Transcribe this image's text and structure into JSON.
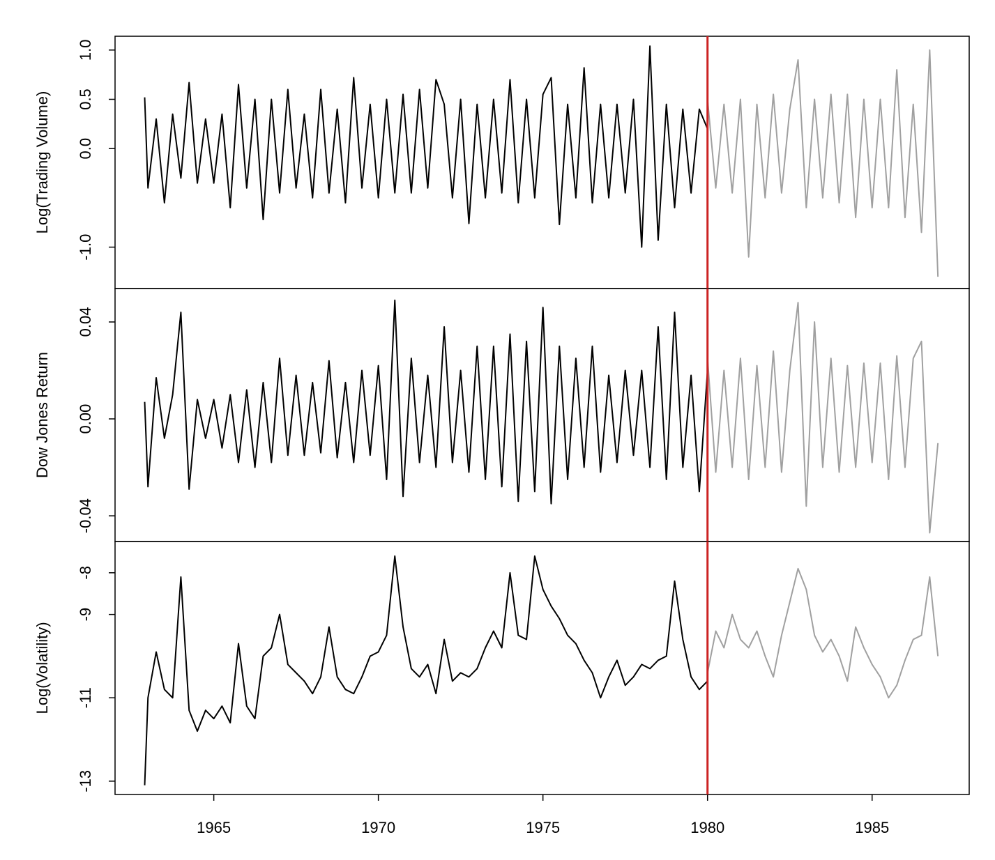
{
  "chart_data": [
    {
      "type": "line",
      "ylabel": "Log(Trading Volume)",
      "xlim": [
        1962,
        1987.95
      ],
      "ylim": [
        -1.42,
        1.14
      ],
      "yticks": [
        {
          "value": -1.0,
          "label": "-1.0"
        },
        {
          "value": 0.0,
          "label": "0.0"
        },
        {
          "value": 0.5,
          "label": "0.5"
        },
        {
          "value": 1.0,
          "label": "1.0"
        }
      ],
      "vline": 1980,
      "vline_color": "#cc2222",
      "series": [
        {
          "color": "#000000",
          "x": [
            1962.9,
            1963,
            1963.25,
            1963.5,
            1963.75,
            1964,
            1964.25,
            1964.5,
            1964.75,
            1965,
            1965.25,
            1965.5,
            1965.75,
            1966,
            1966.25,
            1966.5,
            1966.75,
            1967,
            1967.25,
            1967.5,
            1967.75,
            1968,
            1968.25,
            1968.5,
            1968.75,
            1969,
            1969.25,
            1969.5,
            1969.75,
            1970,
            1970.25,
            1970.5,
            1970.75,
            1971,
            1971.25,
            1971.5,
            1971.75,
            1972,
            1972.25,
            1972.5,
            1972.75,
            1973,
            1973.25,
            1973.5,
            1973.75,
            1974,
            1974.25,
            1974.5,
            1974.75,
            1975,
            1975.25,
            1975.5,
            1975.75,
            1976,
            1976.25,
            1976.5,
            1976.75,
            1977,
            1977.25,
            1977.5,
            1977.75,
            1978,
            1978.25,
            1978.5,
            1978.75,
            1979,
            1979.25,
            1979.5,
            1979.75,
            1980
          ],
          "values": [
            0.52,
            -0.4,
            0.3,
            -0.55,
            0.35,
            -0.3,
            0.67,
            -0.35,
            0.3,
            -0.35,
            0.35,
            -0.6,
            0.65,
            -0.4,
            0.5,
            -0.72,
            0.5,
            -0.45,
            0.6,
            -0.4,
            0.35,
            -0.5,
            0.6,
            -0.45,
            0.4,
            -0.55,
            0.72,
            -0.4,
            0.45,
            -0.5,
            0.5,
            -0.45,
            0.55,
            -0.45,
            0.6,
            -0.4,
            0.7,
            0.45,
            -0.5,
            0.5,
            -0.76,
            0.45,
            -0.5,
            0.5,
            -0.45,
            0.7,
            -0.55,
            0.5,
            -0.5,
            0.55,
            0.72,
            -0.77,
            0.45,
            -0.5,
            0.82,
            -0.55,
            0.45,
            -0.5,
            0.45,
            -0.45,
            0.5,
            -1.0,
            1.04,
            -0.93,
            0.45,
            -0.6,
            0.4,
            -0.45,
            0.4,
            0.2
          ]
        },
        {
          "color": "#a0a0a0",
          "x": [
            1980,
            1980.25,
            1980.5,
            1980.75,
            1981,
            1981.25,
            1981.5,
            1981.75,
            1982,
            1982.25,
            1982.5,
            1982.75,
            1983,
            1983.25,
            1983.5,
            1983.75,
            1984,
            1984.25,
            1984.5,
            1984.75,
            1985,
            1985.25,
            1985.5,
            1985.75,
            1986,
            1986.25,
            1986.5,
            1986.75,
            1987
          ],
          "values": [
            0.5,
            -0.4,
            0.45,
            -0.45,
            0.5,
            -1.1,
            0.45,
            -0.5,
            0.55,
            -0.45,
            0.4,
            0.9,
            -0.6,
            0.5,
            -0.5,
            0.55,
            -0.55,
            0.55,
            -0.7,
            0.5,
            -0.6,
            0.5,
            -0.6,
            0.8,
            -0.7,
            0.45,
            -0.85,
            1.0,
            -1.3
          ]
        }
      ]
    },
    {
      "type": "line",
      "ylabel": "Dow Jones Return",
      "xlim": [
        1962,
        1987.95
      ],
      "ylim": [
        -0.0506,
        0.0538
      ],
      "yticks": [
        {
          "value": -0.04,
          "label": "-0.04"
        },
        {
          "value": 0.0,
          "label": "0.00"
        },
        {
          "value": 0.04,
          "label": "0.04"
        }
      ],
      "vline": 1980,
      "vline_color": "#cc2222",
      "series": [
        {
          "color": "#000000",
          "x": [
            1962.9,
            1963,
            1963.25,
            1963.5,
            1963.75,
            1964,
            1964.25,
            1964.5,
            1964.75,
            1965,
            1965.25,
            1965.5,
            1965.75,
            1966,
            1966.25,
            1966.5,
            1966.75,
            1967,
            1967.25,
            1967.5,
            1967.75,
            1968,
            1968.25,
            1968.5,
            1968.75,
            1969,
            1969.25,
            1969.5,
            1969.75,
            1970,
            1970.25,
            1970.5,
            1970.75,
            1971,
            1971.25,
            1971.5,
            1971.75,
            1972,
            1972.25,
            1972.5,
            1972.75,
            1973,
            1973.25,
            1973.5,
            1973.75,
            1974,
            1974.25,
            1974.5,
            1974.75,
            1975,
            1975.25,
            1975.5,
            1975.75,
            1976,
            1976.25,
            1976.5,
            1976.75,
            1977,
            1977.25,
            1977.5,
            1977.75,
            1978,
            1978.25,
            1978.5,
            1978.75,
            1979,
            1979.25,
            1979.5,
            1979.75,
            1980
          ],
          "values": [
            0.007,
            -0.028,
            0.017,
            -0.008,
            0.01,
            0.044,
            -0.029,
            0.008,
            -0.008,
            0.008,
            -0.012,
            0.01,
            -0.018,
            0.012,
            -0.02,
            0.015,
            -0.018,
            0.025,
            -0.015,
            0.018,
            -0.015,
            0.015,
            -0.014,
            0.024,
            -0.016,
            0.015,
            -0.018,
            0.02,
            -0.015,
            0.022,
            -0.025,
            0.049,
            -0.032,
            0.025,
            -0.018,
            0.018,
            -0.02,
            0.038,
            -0.018,
            0.02,
            -0.022,
            0.03,
            -0.025,
            0.03,
            -0.028,
            0.035,
            -0.034,
            0.032,
            -0.03,
            0.046,
            -0.035,
            0.03,
            -0.025,
            0.025,
            -0.02,
            0.03,
            -0.022,
            0.018,
            -0.018,
            0.02,
            -0.015,
            0.02,
            -0.02,
            0.038,
            -0.025,
            0.044,
            -0.02,
            0.018,
            -0.03,
            0.02
          ]
        },
        {
          "color": "#a0a0a0",
          "x": [
            1980,
            1980.25,
            1980.5,
            1980.75,
            1981,
            1981.25,
            1981.5,
            1981.75,
            1982,
            1982.25,
            1982.5,
            1982.75,
            1983,
            1983.25,
            1983.5,
            1983.75,
            1984,
            1984.25,
            1984.5,
            1984.75,
            1985,
            1985.25,
            1985.5,
            1985.75,
            1986,
            1986.25,
            1986.5,
            1986.75,
            1987
          ],
          "values": [
            0.025,
            -0.022,
            0.02,
            -0.02,
            0.025,
            -0.025,
            0.022,
            -0.02,
            0.028,
            -0.022,
            0.02,
            0.048,
            -0.036,
            0.04,
            -0.02,
            0.025,
            -0.022,
            0.022,
            -0.02,
            0.023,
            -0.018,
            0.023,
            -0.025,
            0.026,
            -0.02,
            0.025,
            0.032,
            -0.047,
            -0.01
          ]
        }
      ]
    },
    {
      "type": "line",
      "ylabel": "Log(Volatility)",
      "xlim": [
        1962,
        1987.95
      ],
      "ylim": [
        -13.32,
        -7.25
      ],
      "yticks": [
        -13,
        -11,
        -9,
        -8
      ],
      "xticks": [
        1965,
        1970,
        1975,
        1980,
        1985
      ],
      "vline": 1980,
      "vline_color": "#cc2222",
      "series": [
        {
          "color": "#000000",
          "x": [
            1962.9,
            1963,
            1963.25,
            1963.5,
            1963.75,
            1964,
            1964.25,
            1964.5,
            1964.75,
            1965,
            1965.25,
            1965.5,
            1965.75,
            1966,
            1966.25,
            1966.5,
            1966.75,
            1967,
            1967.25,
            1967.5,
            1967.75,
            1968,
            1968.25,
            1968.5,
            1968.75,
            1969,
            1969.25,
            1969.5,
            1969.75,
            1970,
            1970.25,
            1970.5,
            1970.75,
            1971,
            1971.25,
            1971.5,
            1971.75,
            1972,
            1972.25,
            1972.5,
            1972.75,
            1973,
            1973.25,
            1973.5,
            1973.75,
            1974,
            1974.25,
            1974.5,
            1974.75,
            1975,
            1975.25,
            1975.5,
            1975.75,
            1976,
            1976.25,
            1976.5,
            1976.75,
            1977,
            1977.25,
            1977.5,
            1977.75,
            1978,
            1978.25,
            1978.5,
            1978.75,
            1979,
            1979.25,
            1979.5,
            1979.75,
            1980
          ],
          "values": [
            -13.1,
            -11.0,
            -9.9,
            -10.8,
            -11.0,
            -8.1,
            -11.3,
            -11.8,
            -11.3,
            -11.5,
            -11.2,
            -11.6,
            -9.7,
            -11.2,
            -11.5,
            -10.0,
            -9.8,
            -9.0,
            -10.2,
            -10.4,
            -10.6,
            -10.9,
            -10.5,
            -9.3,
            -10.5,
            -10.8,
            -10.9,
            -10.5,
            -10.0,
            -9.9,
            -9.5,
            -7.6,
            -9.3,
            -10.3,
            -10.5,
            -10.2,
            -10.9,
            -9.6,
            -10.6,
            -10.4,
            -10.5,
            -10.3,
            -9.8,
            -9.4,
            -9.8,
            -8.0,
            -9.5,
            -9.6,
            -7.6,
            -8.4,
            -8.8,
            -9.1,
            -9.5,
            -9.7,
            -10.1,
            -10.4,
            -11.0,
            -10.5,
            -10.1,
            -10.7,
            -10.5,
            -10.2,
            -10.3,
            -10.1,
            -10.0,
            -8.2,
            -9.6,
            -10.5,
            -10.8,
            -10.6
          ]
        },
        {
          "color": "#a0a0a0",
          "x": [
            1980,
            1980.25,
            1980.5,
            1980.75,
            1981,
            1981.25,
            1981.5,
            1981.75,
            1982,
            1982.25,
            1982.5,
            1982.75,
            1983,
            1983.25,
            1983.5,
            1983.75,
            1984,
            1984.25,
            1984.5,
            1984.75,
            1985,
            1985.25,
            1985.5,
            1985.75,
            1986,
            1986.25,
            1986.5,
            1986.75,
            1987
          ],
          "values": [
            -10.4,
            -9.4,
            -9.8,
            -9.0,
            -9.6,
            -9.8,
            -9.4,
            -10.0,
            -10.5,
            -9.5,
            -8.7,
            -7.9,
            -8.4,
            -9.5,
            -9.9,
            -9.6,
            -10.0,
            -10.6,
            -9.3,
            -9.8,
            -10.2,
            -10.5,
            -11.0,
            -10.7,
            -10.1,
            -9.6,
            -9.5,
            -8.1,
            -10.0
          ]
        }
      ]
    }
  ]
}
